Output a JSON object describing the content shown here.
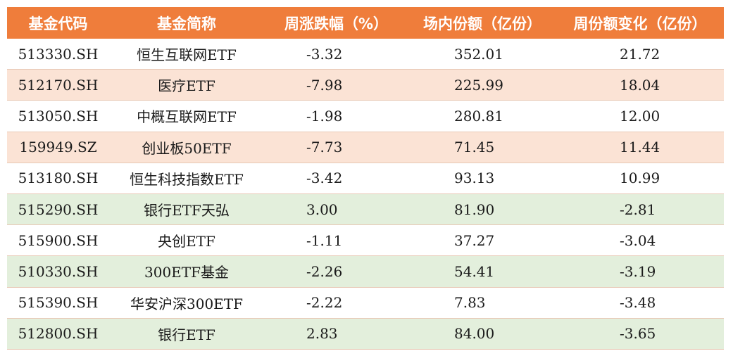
{
  "table": {
    "headers": [
      "基金代码",
      "基金简称",
      "周涨跌幅（%）",
      "场内份额（亿份）",
      "周份额变化（亿份）"
    ],
    "rows": [
      {
        "style": "white",
        "cells": [
          "513330.SH",
          "恒生互联网ETF",
          "-3.32",
          "352.01",
          "21.72"
        ]
      },
      {
        "style": "pink",
        "cells": [
          "512170.SH",
          "医疗ETF",
          "-7.98",
          "225.99",
          "18.04"
        ]
      },
      {
        "style": "white",
        "cells": [
          "513050.SH",
          "中概互联网ETF",
          "-1.98",
          "280.81",
          "12.00"
        ]
      },
      {
        "style": "pink",
        "cells": [
          "159949.SZ",
          "创业板50ETF",
          "-7.73",
          "71.45",
          "11.44"
        ]
      },
      {
        "style": "white",
        "cells": [
          "513180.SH",
          "恒生科技指数ETF",
          "-3.42",
          "93.13",
          "10.99"
        ]
      },
      {
        "style": "green",
        "cells": [
          "515290.SH",
          "银行ETF天弘",
          "3.00",
          "81.90",
          "-2.81"
        ]
      },
      {
        "style": "white",
        "cells": [
          "515900.SH",
          "央创ETF",
          "-1.11",
          "37.27",
          "-3.04"
        ]
      },
      {
        "style": "green",
        "cells": [
          "510330.SH",
          "300ETF基金",
          "-2.26",
          "54.41",
          "-3.19"
        ]
      },
      {
        "style": "white",
        "cells": [
          "515390.SH",
          "华安沪深300ETF",
          "-2.22",
          "7.83",
          "-3.48"
        ]
      },
      {
        "style": "green",
        "cells": [
          "512800.SH",
          "银行ETF",
          "2.83",
          "84.00",
          "-3.65"
        ]
      }
    ]
  },
  "colors": {
    "header_bg": "#ef7d3b",
    "row_pink": "#fbe3d5",
    "row_green": "#e3efdc"
  }
}
